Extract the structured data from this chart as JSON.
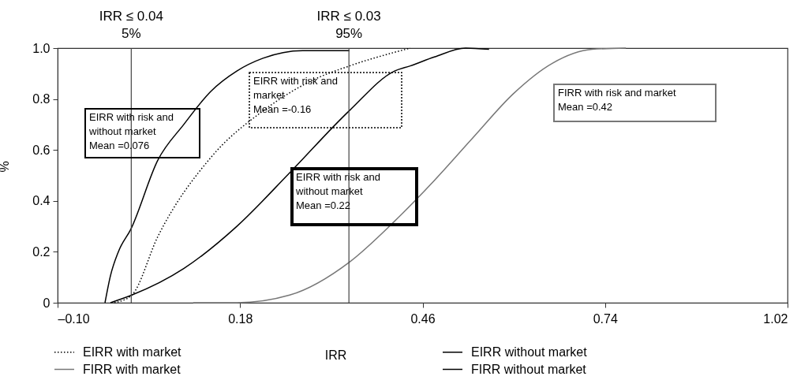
{
  "chart_data": {
    "type": "line",
    "xlabel": "IRR",
    "ylabel": "%",
    "xlim": [
      -0.1,
      1.02
    ],
    "xticks": [
      {
        "value": -0.1,
        "label": "–0.10"
      },
      0.18,
      0.46,
      0.74,
      1.02
    ],
    "ylim": [
      0,
      1
    ],
    "yticks": [
      0,
      0.2,
      0.4,
      0.6,
      0.8,
      {
        "value": 1,
        "label": "1.0"
      }
    ],
    "grid": false,
    "legend": "bottom",
    "series": [
      {
        "name": "EIRR with market",
        "color": "#000000",
        "line_style": "dotted",
        "x": [
          -0.0128,
          0.0138,
          0.0538,
          0.135,
          0.216,
          0.2965,
          0.348,
          0.441
        ],
        "values": [
          0,
          0.03,
          0.26,
          0.57,
          0.755,
          0.88,
          0.93,
          1.0
        ]
      },
      {
        "name": "EIRR without market",
        "color": "#000000",
        "line_style": "solid",
        "x": [
          -0.0273,
          -0.019,
          -0.0068,
          0.0126,
          0.0538,
          0.0936,
          0.135,
          0.175,
          0.215,
          0.276,
          0.348
        ],
        "values": [
          0,
          0.105,
          0.2,
          0.29,
          0.56,
          0.7,
          0.83,
          0.91,
          0.96,
          0.99,
          0.99
        ]
      },
      {
        "name": "FIRR with market",
        "color": "#777777",
        "line_style": "solid",
        "x": [
          0.108,
          0.175,
          0.256,
          0.348,
          0.417,
          0.478,
          0.538,
          0.599,
          0.659,
          0.72,
          0.772
        ],
        "values": [
          0,
          0,
          0.03,
          0.16,
          0.32,
          0.48,
          0.65,
          0.82,
          0.94,
          0.995,
          1.0
        ]
      },
      {
        "name": "FIRR without market",
        "color": "#000000",
        "line_style": "solid",
        "x": [
          -0.0189,
          0.0138,
          0.094,
          0.175,
          0.256,
          0.348,
          0.417,
          0.441,
          0.478,
          0.526,
          0.562
        ],
        "values": [
          0,
          0.03,
          0.135,
          0.3,
          0.51,
          0.755,
          0.91,
          0.93,
          0.965,
          1.0,
          0.995
        ]
      }
    ],
    "ref_lines": [
      {
        "axis": "x",
        "value": 0.013,
        "label": "IRR ≤ 0.04"
      },
      {
        "axis": "x",
        "value": 0.347,
        "label": "IRR ≤ 0.03"
      }
    ],
    "annotations": [
      {
        "text": "5%",
        "x": 0.013,
        "y": 1
      },
      {
        "text": "95%",
        "x": 0.347,
        "y": 1
      },
      "EIRR with risk and\nwithout market\nMean =0.076",
      "EIRR with risk and\nmarket\nMean =-0.16",
      "EIRR with risk and\nwithout market\nMean =0.22",
      "FIRR with risk and market\nMean =0.42"
    ]
  }
}
